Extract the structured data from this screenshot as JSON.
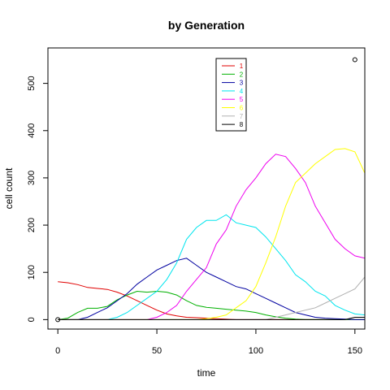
{
  "chart_data": {
    "type": "line",
    "title": "by Generation",
    "xlabel": "time",
    "ylabel": "cell count",
    "xlim": [
      -5,
      155
    ],
    "ylim": [
      -20,
      575
    ],
    "xticks": [
      0,
      50,
      100,
      150
    ],
    "yticks": [
      0,
      100,
      200,
      300,
      400,
      500
    ],
    "grid": false,
    "legend_position": "top-center",
    "series": [
      {
        "name": "1",
        "color": "#e00000",
        "x": [
          0,
          5,
          10,
          15,
          20,
          25,
          30,
          35,
          40,
          45,
          50,
          55,
          60,
          65,
          70,
          75,
          80,
          85,
          90,
          95,
          100,
          105,
          110,
          115,
          120,
          125,
          130,
          135,
          140,
          145,
          150,
          155
        ],
        "values": [
          80,
          78,
          74,
          68,
          66,
          64,
          58,
          50,
          40,
          30,
          20,
          12,
          8,
          5,
          4,
          3,
          2,
          1,
          0,
          0,
          0,
          0,
          0,
          0,
          0,
          0,
          0,
          0,
          0,
          0,
          0,
          0
        ]
      },
      {
        "name": "2",
        "color": "#00b000",
        "x": [
          0,
          5,
          10,
          15,
          20,
          25,
          30,
          35,
          40,
          45,
          50,
          55,
          60,
          65,
          70,
          75,
          80,
          85,
          90,
          95,
          100,
          105,
          110,
          115,
          120,
          125,
          130,
          135,
          140,
          145,
          150,
          155
        ],
        "values": [
          0,
          3,
          15,
          24,
          24,
          28,
          42,
          52,
          60,
          58,
          60,
          58,
          52,
          40,
          30,
          26,
          24,
          22,
          20,
          18,
          15,
          10,
          6,
          3,
          1,
          0,
          0,
          0,
          0,
          0,
          0,
          0
        ]
      },
      {
        "name": "3",
        "color": "#0000a0",
        "x": [
          0,
          5,
          10,
          15,
          20,
          25,
          30,
          35,
          40,
          45,
          50,
          55,
          60,
          65,
          70,
          75,
          80,
          85,
          90,
          95,
          100,
          105,
          110,
          115,
          120,
          125,
          130,
          135,
          140,
          145,
          150,
          155
        ],
        "values": [
          0,
          0,
          0,
          5,
          15,
          25,
          40,
          55,
          75,
          90,
          105,
          115,
          125,
          130,
          115,
          100,
          90,
          80,
          70,
          65,
          55,
          45,
          35,
          25,
          15,
          10,
          5,
          3,
          2,
          1,
          0,
          0
        ]
      },
      {
        "name": "4",
        "color": "#00e5ee",
        "x": [
          0,
          5,
          10,
          15,
          20,
          25,
          30,
          35,
          40,
          45,
          50,
          55,
          60,
          65,
          70,
          75,
          80,
          85,
          90,
          95,
          100,
          105,
          110,
          115,
          120,
          125,
          130,
          135,
          140,
          145,
          150,
          155
        ],
        "values": [
          0,
          0,
          0,
          0,
          0,
          0,
          5,
          15,
          30,
          45,
          60,
          85,
          120,
          170,
          195,
          210,
          210,
          222,
          205,
          200,
          195,
          175,
          150,
          125,
          95,
          80,
          60,
          50,
          30,
          20,
          12,
          10
        ]
      },
      {
        "name": "5",
        "color": "#ee00ee",
        "x": [
          0,
          5,
          10,
          15,
          20,
          25,
          30,
          35,
          40,
          45,
          50,
          55,
          60,
          65,
          70,
          75,
          80,
          85,
          90,
          95,
          100,
          105,
          110,
          115,
          120,
          125,
          130,
          135,
          140,
          145,
          150,
          155
        ],
        "values": [
          0,
          0,
          0,
          0,
          0,
          0,
          0,
          0,
          0,
          0,
          5,
          15,
          30,
          60,
          85,
          110,
          160,
          190,
          240,
          275,
          300,
          330,
          350,
          345,
          320,
          290,
          240,
          205,
          170,
          150,
          135,
          130
        ]
      },
      {
        "name": "6",
        "color": "#ffff00",
        "x": [
          0,
          5,
          10,
          15,
          20,
          25,
          30,
          35,
          40,
          45,
          50,
          55,
          60,
          65,
          70,
          75,
          80,
          85,
          90,
          95,
          100,
          105,
          110,
          115,
          120,
          125,
          130,
          135,
          140,
          145,
          150,
          155
        ],
        "values": [
          0,
          0,
          0,
          0,
          0,
          0,
          0,
          0,
          0,
          0,
          0,
          0,
          0,
          0,
          0,
          2,
          5,
          10,
          25,
          40,
          70,
          120,
          175,
          240,
          290,
          310,
          330,
          345,
          360,
          362,
          355,
          310
        ]
      },
      {
        "name": "7",
        "color": "#b0b0b0",
        "x": [
          0,
          5,
          10,
          15,
          20,
          25,
          30,
          35,
          40,
          45,
          50,
          55,
          60,
          65,
          70,
          75,
          80,
          85,
          90,
          95,
          100,
          105,
          110,
          115,
          120,
          125,
          130,
          135,
          140,
          145,
          150,
          155
        ],
        "values": [
          0,
          0,
          0,
          0,
          0,
          0,
          0,
          0,
          0,
          0,
          0,
          0,
          0,
          0,
          0,
          0,
          0,
          0,
          0,
          0,
          0,
          0,
          5,
          10,
          15,
          20,
          25,
          35,
          45,
          55,
          65,
          90
        ]
      },
      {
        "name": "8",
        "color": "#000000",
        "x": [
          0,
          5,
          10,
          15,
          20,
          25,
          30,
          35,
          40,
          45,
          50,
          55,
          60,
          65,
          70,
          75,
          80,
          85,
          90,
          95,
          100,
          105,
          110,
          115,
          120,
          125,
          130,
          135,
          140,
          145,
          150,
          155
        ],
        "values": [
          0,
          0,
          0,
          0,
          0,
          0,
          0,
          0,
          0,
          0,
          0,
          0,
          0,
          0,
          0,
          0,
          0,
          0,
          0,
          0,
          0,
          0,
          0,
          0,
          0,
          0,
          0,
          0,
          0,
          0,
          5,
          5
        ]
      }
    ],
    "points": [
      {
        "x": 0,
        "y": 0
      },
      {
        "x": 150,
        "y": 550
      }
    ]
  }
}
